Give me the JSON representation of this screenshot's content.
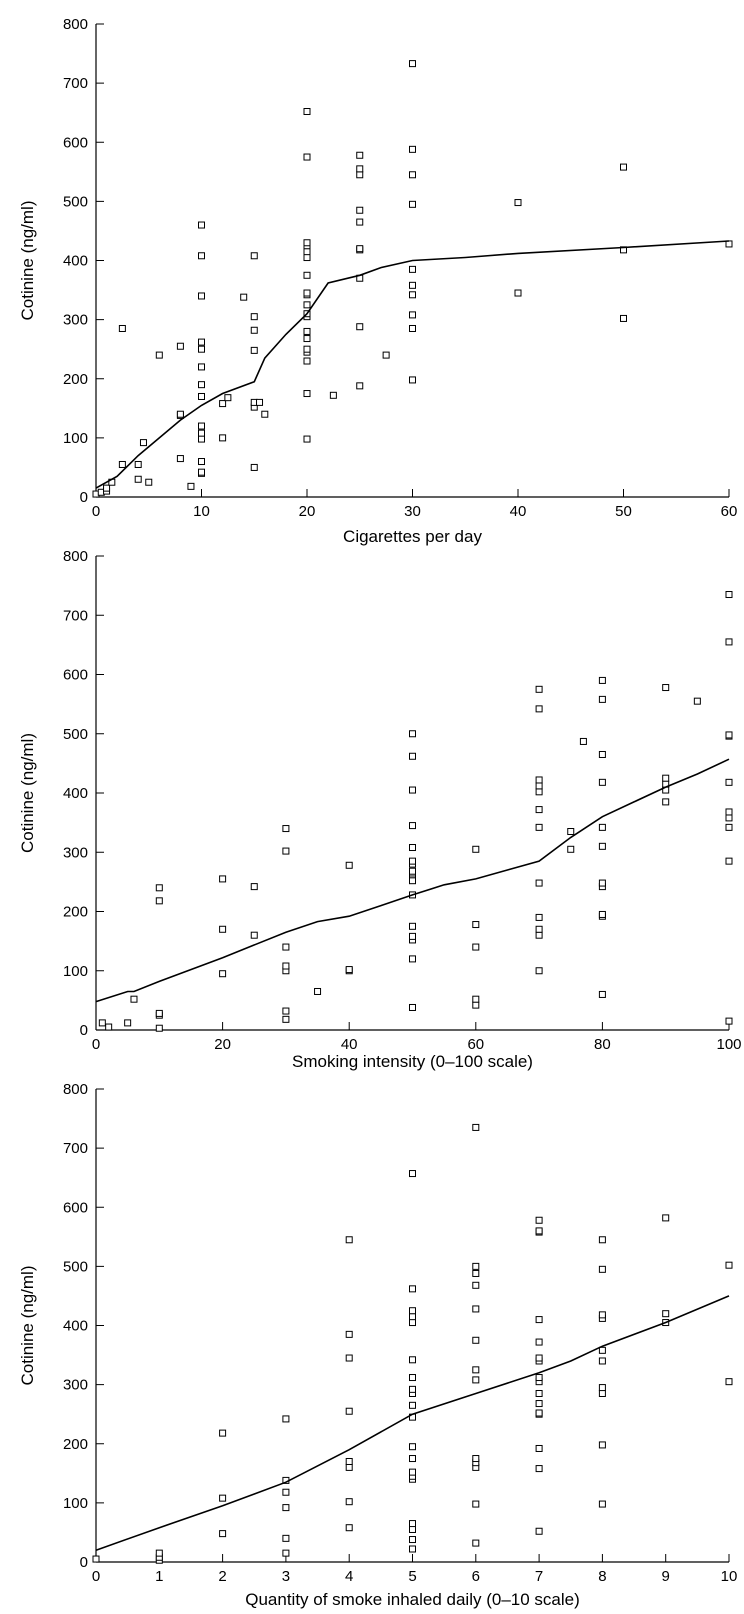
{
  "chart_data": [
    {
      "type": "scatter",
      "xlabel": "Cigarettes per day",
      "ylabel": "Cotinine (ng/ml)",
      "xlim": [
        0,
        60
      ],
      "ylim": [
        0,
        800
      ],
      "xticks": [
        0,
        10,
        20,
        30,
        40,
        50,
        60
      ],
      "yticks": [
        0,
        100,
        200,
        300,
        400,
        500,
        600,
        700,
        800
      ],
      "grid": false,
      "points": [
        [
          0,
          5
        ],
        [
          0.5,
          8
        ],
        [
          1,
          10
        ],
        [
          1,
          15
        ],
        [
          1.5,
          25
        ],
        [
          2.5,
          55
        ],
        [
          2.5,
          285
        ],
        [
          4,
          30
        ],
        [
          4,
          55
        ],
        [
          4.5,
          92
        ],
        [
          5,
          25
        ],
        [
          6,
          240
        ],
        [
          8,
          65
        ],
        [
          8,
          138
        ],
        [
          8,
          140
        ],
        [
          8,
          255
        ],
        [
          9,
          18
        ],
        [
          10,
          40
        ],
        [
          10,
          42
        ],
        [
          10,
          60
        ],
        [
          10,
          98
        ],
        [
          10,
          108
        ],
        [
          10,
          120
        ],
        [
          10,
          170
        ],
        [
          10,
          190
        ],
        [
          10,
          220
        ],
        [
          10,
          250
        ],
        [
          10,
          262
        ],
        [
          10,
          340
        ],
        [
          10,
          408
        ],
        [
          10,
          460
        ],
        [
          12,
          100
        ],
        [
          12,
          158
        ],
        [
          12.5,
          168
        ],
        [
          14,
          338
        ],
        [
          15,
          50
        ],
        [
          15,
          152
        ],
        [
          15,
          160
        ],
        [
          15,
          248
        ],
        [
          15,
          282
        ],
        [
          15,
          305
        ],
        [
          15,
          408
        ],
        [
          15.5,
          160
        ],
        [
          16,
          140
        ],
        [
          20,
          98
        ],
        [
          20,
          175
        ],
        [
          20,
          230
        ],
        [
          20,
          245
        ],
        [
          20,
          250
        ],
        [
          20,
          268
        ],
        [
          20,
          280
        ],
        [
          20,
          305
        ],
        [
          20,
          310
        ],
        [
          20,
          325
        ],
        [
          20,
          342
        ],
        [
          20,
          345
        ],
        [
          20,
          375
        ],
        [
          20,
          405
        ],
        [
          20,
          415
        ],
        [
          20,
          425
        ],
        [
          20,
          430
        ],
        [
          20,
          575
        ],
        [
          20,
          652
        ],
        [
          22.5,
          172
        ],
        [
          25,
          188
        ],
        [
          25,
          288
        ],
        [
          25,
          370
        ],
        [
          25,
          418
        ],
        [
          25,
          420
        ],
        [
          25,
          465
        ],
        [
          25,
          485
        ],
        [
          25,
          545
        ],
        [
          25,
          555
        ],
        [
          25,
          578
        ],
        [
          27.5,
          240
        ],
        [
          30,
          198
        ],
        [
          30,
          285
        ],
        [
          30,
          308
        ],
        [
          30,
          342
        ],
        [
          30,
          358
        ],
        [
          30,
          385
        ],
        [
          30,
          495
        ],
        [
          30,
          545
        ],
        [
          30,
          588
        ],
        [
          30,
          733
        ],
        [
          40,
          345
        ],
        [
          40,
          498
        ],
        [
          50,
          302
        ],
        [
          50,
          418
        ],
        [
          50,
          558
        ],
        [
          60,
          428
        ]
      ],
      "fit_line": [
        [
          0,
          15
        ],
        [
          2,
          35
        ],
        [
          4,
          70
        ],
        [
          6,
          100
        ],
        [
          8,
          130
        ],
        [
          10,
          155
        ],
        [
          12,
          175
        ],
        [
          15,
          195
        ],
        [
          16,
          235
        ],
        [
          18,
          275
        ],
        [
          20,
          310
        ],
        [
          22,
          362
        ],
        [
          25,
          375
        ],
        [
          27,
          388
        ],
        [
          30,
          400
        ],
        [
          35,
          405
        ],
        [
          40,
          412
        ],
        [
          50,
          422
        ],
        [
          60,
          433
        ]
      ]
    },
    {
      "type": "scatter",
      "xlabel": "Smoking intensity (0–100 scale)",
      "ylabel": "Cotinine (ng/ml)",
      "xlim": [
        0,
        100
      ],
      "ylim": [
        0,
        800
      ],
      "xticks": [
        0,
        20,
        40,
        60,
        80,
        100
      ],
      "yticks": [
        0,
        100,
        200,
        300,
        400,
        500,
        600,
        700,
        800
      ],
      "grid": false,
      "points": [
        [
          1,
          12
        ],
        [
          2,
          5
        ],
        [
          5,
          12
        ],
        [
          6,
          52
        ],
        [
          10,
          3
        ],
        [
          10,
          25
        ],
        [
          10,
          28
        ],
        [
          10,
          218
        ],
        [
          10,
          240
        ],
        [
          20,
          95
        ],
        [
          20,
          170
        ],
        [
          20,
          255
        ],
        [
          25,
          160
        ],
        [
          25,
          242
        ],
        [
          30,
          18
        ],
        [
          30,
          32
        ],
        [
          30,
          100
        ],
        [
          30,
          108
        ],
        [
          30,
          140
        ],
        [
          30,
          302
        ],
        [
          30,
          340
        ],
        [
          35,
          65
        ],
        [
          40,
          100
        ],
        [
          40,
          102
        ],
        [
          40,
          278
        ],
        [
          50,
          38
        ],
        [
          50,
          120
        ],
        [
          50,
          152
        ],
        [
          50,
          158
        ],
        [
          50,
          175
        ],
        [
          50,
          228
        ],
        [
          50,
          252
        ],
        [
          50,
          262
        ],
        [
          50,
          265
        ],
        [
          50,
          268
        ],
        [
          50,
          280
        ],
        [
          50,
          285
        ],
        [
          50,
          308
        ],
        [
          50,
          345
        ],
        [
          50,
          405
        ],
        [
          50,
          462
        ],
        [
          50,
          500
        ],
        [
          60,
          42
        ],
        [
          60,
          52
        ],
        [
          60,
          140
        ],
        [
          60,
          178
        ],
        [
          60,
          305
        ],
        [
          70,
          100
        ],
        [
          70,
          160
        ],
        [
          70,
          170
        ],
        [
          70,
          190
        ],
        [
          70,
          248
        ],
        [
          70,
          342
        ],
        [
          70,
          372
        ],
        [
          70,
          402
        ],
        [
          70,
          412
        ],
        [
          70,
          422
        ],
        [
          70,
          542
        ],
        [
          70,
          575
        ],
        [
          75,
          305
        ],
        [
          75,
          335
        ],
        [
          77,
          487
        ],
        [
          80,
          60
        ],
        [
          80,
          192
        ],
        [
          80,
          195
        ],
        [
          80,
          242
        ],
        [
          80,
          248
        ],
        [
          80,
          310
        ],
        [
          80,
          342
        ],
        [
          80,
          418
        ],
        [
          80,
          465
        ],
        [
          80,
          558
        ],
        [
          80,
          590
        ],
        [
          90,
          385
        ],
        [
          90,
          405
        ],
        [
          90,
          415
        ],
        [
          90,
          425
        ],
        [
          90,
          578
        ],
        [
          95,
          555
        ],
        [
          100,
          15
        ],
        [
          100,
          285
        ],
        [
          100,
          342
        ],
        [
          100,
          358
        ],
        [
          100,
          368
        ],
        [
          100,
          418
        ],
        [
          100,
          496
        ],
        [
          100,
          498
        ],
        [
          100,
          655
        ],
        [
          100,
          735
        ]
      ],
      "fit_line": [
        [
          0,
          48
        ],
        [
          5,
          65
        ],
        [
          6,
          65
        ],
        [
          10,
          82
        ],
        [
          20,
          122
        ],
        [
          30,
          165
        ],
        [
          35,
          183
        ],
        [
          40,
          192
        ],
        [
          45,
          210
        ],
        [
          50,
          228
        ],
        [
          55,
          245
        ],
        [
          60,
          255
        ],
        [
          65,
          270
        ],
        [
          70,
          285
        ],
        [
          75,
          325
        ],
        [
          80,
          360
        ],
        [
          85,
          385
        ],
        [
          90,
          410
        ],
        [
          95,
          432
        ],
        [
          100,
          457
        ]
      ]
    },
    {
      "type": "scatter",
      "xlabel": "Quantity of smoke inhaled daily (0–10 scale)",
      "ylabel": "Cotinine (ng/ml)",
      "xlim": [
        0,
        10
      ],
      "ylim": [
        0,
        800
      ],
      "xticks": [
        0,
        1,
        2,
        3,
        4,
        5,
        6,
        7,
        8,
        9,
        10
      ],
      "yticks": [
        0,
        100,
        200,
        300,
        400,
        500,
        600,
        700,
        800
      ],
      "grid": false,
      "points": [
        [
          0,
          5
        ],
        [
          1,
          3
        ],
        [
          1,
          8
        ],
        [
          1,
          15
        ],
        [
          2,
          48
        ],
        [
          2,
          108
        ],
        [
          2,
          218
        ],
        [
          3,
          15
        ],
        [
          3,
          40
        ],
        [
          3,
          92
        ],
        [
          3,
          118
        ],
        [
          3,
          138
        ],
        [
          3,
          242
        ],
        [
          4,
          58
        ],
        [
          4,
          102
        ],
        [
          4,
          160
        ],
        [
          4,
          170
        ],
        [
          4,
          255
        ],
        [
          4,
          345
        ],
        [
          4,
          385
        ],
        [
          4,
          545
        ],
        [
          5,
          22
        ],
        [
          5,
          38
        ],
        [
          5,
          55
        ],
        [
          5,
          65
        ],
        [
          5,
          140
        ],
        [
          5,
          145
        ],
        [
          5,
          152
        ],
        [
          5,
          175
        ],
        [
          5,
          195
        ],
        [
          5,
          245
        ],
        [
          5,
          265
        ],
        [
          5,
          285
        ],
        [
          5,
          292
        ],
        [
          5,
          312
        ],
        [
          5,
          342
        ],
        [
          5,
          405
        ],
        [
          5,
          415
        ],
        [
          5,
          425
        ],
        [
          5,
          462
        ],
        [
          5,
          657
        ],
        [
          6,
          32
        ],
        [
          6,
          98
        ],
        [
          6,
          160
        ],
        [
          6,
          168
        ],
        [
          6,
          175
        ],
        [
          6,
          308
        ],
        [
          6,
          325
        ],
        [
          6,
          375
        ],
        [
          6,
          428
        ],
        [
          6,
          468
        ],
        [
          6,
          488
        ],
        [
          6,
          500
        ],
        [
          6,
          735
        ],
        [
          7,
          52
        ],
        [
          7,
          158
        ],
        [
          7,
          192
        ],
        [
          7,
          250
        ],
        [
          7,
          252
        ],
        [
          7,
          268
        ],
        [
          7,
          285
        ],
        [
          7,
          305
        ],
        [
          7,
          312
        ],
        [
          7,
          340
        ],
        [
          7,
          345
        ],
        [
          7,
          372
        ],
        [
          7,
          410
        ],
        [
          7,
          558
        ],
        [
          7,
          560
        ],
        [
          7,
          578
        ],
        [
          8,
          98
        ],
        [
          8,
          198
        ],
        [
          8,
          285
        ],
        [
          8,
          295
        ],
        [
          8,
          340
        ],
        [
          8,
          358
        ],
        [
          8,
          412
        ],
        [
          8,
          418
        ],
        [
          8,
          495
        ],
        [
          8,
          545
        ],
        [
          9,
          405
        ],
        [
          9,
          420
        ],
        [
          9,
          582
        ],
        [
          10,
          305
        ],
        [
          10,
          502
        ]
      ],
      "fit_line": [
        [
          0,
          20
        ],
        [
          1,
          58
        ],
        [
          2,
          95
        ],
        [
          2.5,
          115
        ],
        [
          3,
          135
        ],
        [
          4,
          190
        ],
        [
          5,
          250
        ],
        [
          6,
          285
        ],
        [
          7,
          320
        ],
        [
          7.5,
          340
        ],
        [
          8,
          365
        ],
        [
          9,
          405
        ],
        [
          10,
          450
        ]
      ]
    }
  ]
}
